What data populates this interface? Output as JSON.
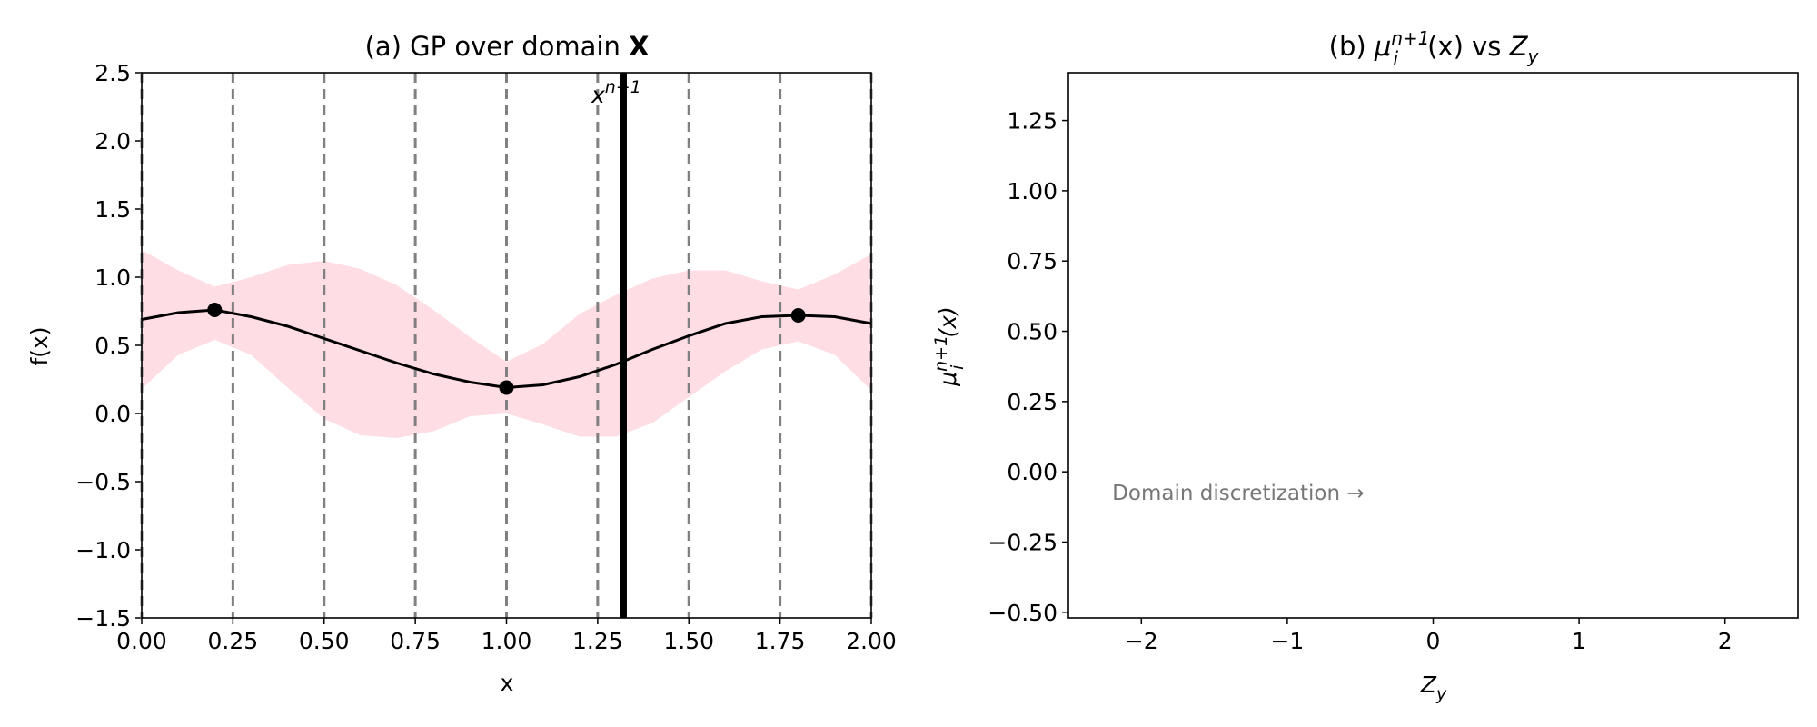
{
  "chart_data": [
    {
      "type": "line",
      "title": "(a) GP over domain X",
      "title_parts": {
        "prefix": "(a) GP over domain ",
        "bold": "X"
      },
      "xlabel": "x",
      "ylabel": "f(x)",
      "xlim": [
        0,
        2
      ],
      "ylim": [
        -1.5,
        2.5
      ],
      "xticks": [
        0,
        0.25,
        0.5,
        0.75,
        1.0,
        1.25,
        1.5,
        1.75,
        2.0
      ],
      "xtick_labels": [
        "0.00",
        "0.25",
        "0.50",
        "0.75",
        "1.00",
        "1.25",
        "1.50",
        "1.75",
        "2.00"
      ],
      "yticks": [
        -1.5,
        -1.0,
        -0.5,
        0.0,
        0.5,
        1.0,
        1.5,
        2.0,
        2.5
      ],
      "ytick_labels": [
        "−1.5",
        "−1.0",
        "−0.5",
        "0.0",
        "0.5",
        "1.0",
        "1.5",
        "2.0",
        "2.5"
      ],
      "discretization_lines": [
        0,
        0.25,
        0.5,
        0.75,
        1.0,
        1.25,
        1.5,
        1.75,
        2.0
      ],
      "observations": {
        "x": [
          0.2,
          1.0,
          1.8
        ],
        "y": [
          0.76,
          0.19,
          0.72
        ]
      },
      "mean": {
        "x": [
          0.0,
          0.1,
          0.2,
          0.3,
          0.4,
          0.5,
          0.6,
          0.7,
          0.8,
          0.9,
          1.0,
          1.1,
          1.2,
          1.3,
          1.4,
          1.5,
          1.6,
          1.7,
          1.8,
          1.9,
          2.0
        ],
        "y": [
          0.69,
          0.74,
          0.76,
          0.71,
          0.64,
          0.55,
          0.46,
          0.37,
          0.29,
          0.23,
          0.19,
          0.21,
          0.27,
          0.36,
          0.47,
          0.57,
          0.66,
          0.71,
          0.72,
          0.71,
          0.66
        ]
      },
      "confidence_band": {
        "upper": [
          1.2,
          1.05,
          0.93,
          1.0,
          1.09,
          1.12,
          1.06,
          0.94,
          0.76,
          0.56,
          0.38,
          0.51,
          0.73,
          0.87,
          0.99,
          1.05,
          1.05,
          0.97,
          0.91,
          1.02,
          1.17
        ],
        "lower": [
          0.18,
          0.43,
          0.54,
          0.43,
          0.19,
          -0.04,
          -0.16,
          -0.18,
          -0.13,
          -0.02,
          0.0,
          -0.08,
          -0.17,
          -0.17,
          -0.07,
          0.12,
          0.31,
          0.47,
          0.53,
          0.43,
          0.17
        ]
      },
      "query_point": {
        "x": 1.32,
        "label_base": "x",
        "label_sup": "n+1"
      },
      "colors": {
        "band": "#ffdde4",
        "mean": "#000000",
        "grid_line": "#808080",
        "query": "#000000"
      }
    },
    {
      "type": "line",
      "title_parts": {
        "prefix": "(b) ",
        "mu": "μ",
        "mu_sup": "n+1",
        "mu_sub": "i",
        "mid": "(x) vs ",
        "z": "Z",
        "z_sub": "y"
      },
      "xlabel_parts": {
        "base": "Z",
        "sub": "y"
      },
      "ylabel_parts": {
        "base": "μ",
        "sup": "n+1",
        "sub": "i",
        "rest": "(x)"
      },
      "xlim": [
        -2.5,
        2.5
      ],
      "ylim": [
        -0.52,
        1.42
      ],
      "xticks": [
        -2,
        -1,
        0,
        1,
        2
      ],
      "xtick_labels": [
        "−2",
        "−1",
        "0",
        "1",
        "2"
      ],
      "yticks": [
        -0.5,
        -0.25,
        0.0,
        0.25,
        0.5,
        0.75,
        1.0,
        1.25
      ],
      "ytick_labels": [
        "−0.50",
        "−0.25",
        "0.00",
        "0.25",
        "0.50",
        "0.75",
        "1.00",
        "1.25"
      ],
      "series": [],
      "annotation": {
        "text": "Domain discretization →",
        "x": -2.2,
        "y": -0.1
      }
    }
  ]
}
